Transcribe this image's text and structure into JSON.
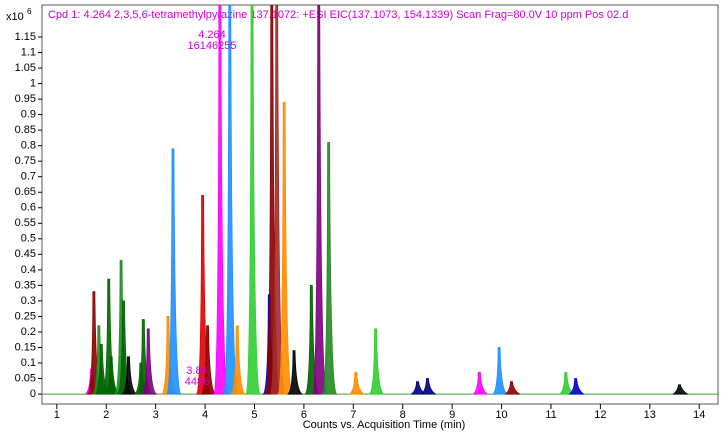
{
  "chart_data": {
    "type": "chromatogram",
    "title": "Cpd 1: 4.264 2,3,5,6-tetramethylpyrazine 137.1072: +ESI EIC(137.1073, 154.1339) Scan Frag=80.0V 10 ppm  Pos 02.d",
    "title_color": "#d000d0",
    "y_unit": "x10",
    "y_unit_exp": "6",
    "x_label": "Counts vs. Acquisition Time (min)",
    "annotations": [
      {
        "text": "4.264",
        "x": 4.264,
        "color": "#d000d0"
      },
      {
        "text": "16146255",
        "x": 4.264,
        "color": "#d000d0"
      },
      {
        "text": "3.84",
        "x": 3.84,
        "color": "#d000d0"
      },
      {
        "text": "4486",
        "x": 3.84,
        "color": "#d000d0"
      }
    ],
    "xlim": [
      0.7,
      14.38
    ],
    "xticks": [
      1,
      2,
      3,
      4,
      5,
      6,
      7,
      8,
      9,
      10,
      11,
      12,
      13,
      14
    ],
    "ylim": [
      -0.032,
      1.253
    ],
    "yticks": [
      0,
      0.05,
      0.1,
      0.15,
      0.2,
      0.25,
      0.3,
      0.35,
      0.4,
      0.45,
      0.5,
      0.55,
      0.6,
      0.65,
      0.7,
      0.75,
      0.8,
      0.85,
      0.9,
      0.95,
      1,
      1.05,
      1.1,
      1.15
    ],
    "peaks": [
      {
        "x": 1.7,
        "height": 0.08,
        "color": "#ff00ff"
      },
      {
        "x": 1.75,
        "height": 0.33,
        "color": "#8b0000"
      },
      {
        "x": 1.85,
        "height": 0.22,
        "color": "#228b22"
      },
      {
        "x": 1.9,
        "height": 0.16,
        "color": "#006400"
      },
      {
        "x": 2.05,
        "height": 0.37,
        "color": "#006400"
      },
      {
        "x": 2.1,
        "height": 0.12,
        "color": "#006400"
      },
      {
        "x": 2.3,
        "height": 0.43,
        "color": "#228b22"
      },
      {
        "x": 2.35,
        "height": 0.3,
        "color": "#006400"
      },
      {
        "x": 2.45,
        "height": 0.12,
        "color": "#000000"
      },
      {
        "x": 2.7,
        "height": 0.1,
        "color": "#006400"
      },
      {
        "x": 2.75,
        "height": 0.24,
        "color": "#006400"
      },
      {
        "x": 2.85,
        "height": 0.21,
        "color": "#800080"
      },
      {
        "x": 3.25,
        "height": 0.25,
        "color": "#ff8c00"
      },
      {
        "x": 3.35,
        "height": 0.79,
        "color": "#1e90ff"
      },
      {
        "x": 3.95,
        "height": 0.64,
        "color": "#e00000"
      },
      {
        "x": 4.05,
        "height": 0.22,
        "color": "#8b0000"
      },
      {
        "x": 4.3,
        "height": 1.3,
        "color": "#ff00ff"
      },
      {
        "x": 4.5,
        "height": 1.3,
        "color": "#1e90ff"
      },
      {
        "x": 4.65,
        "height": 0.22,
        "color": "#ff8c00"
      },
      {
        "x": 4.95,
        "height": 1.3,
        "color": "#32cd32"
      },
      {
        "x": 5.3,
        "height": 0.32,
        "color": "#0000cd"
      },
      {
        "x": 5.35,
        "height": 1.3,
        "color": "#8b0000"
      },
      {
        "x": 5.45,
        "height": 1.3,
        "color": "#a52a2a"
      },
      {
        "x": 5.6,
        "height": 0.94,
        "color": "#ff8c00"
      },
      {
        "x": 5.8,
        "height": 0.14,
        "color": "#000000"
      },
      {
        "x": 6.15,
        "height": 0.35,
        "color": "#006400"
      },
      {
        "x": 6.3,
        "height": 1.3,
        "color": "#800080"
      },
      {
        "x": 6.5,
        "height": 0.81,
        "color": "#228b22"
      },
      {
        "x": 7.05,
        "height": 0.07,
        "color": "#ff8c00"
      },
      {
        "x": 7.45,
        "height": 0.21,
        "color": "#32cd32"
      },
      {
        "x": 8.3,
        "height": 0.04,
        "color": "#000080"
      },
      {
        "x": 8.5,
        "height": 0.05,
        "color": "#000080"
      },
      {
        "x": 9.55,
        "height": 0.07,
        "color": "#ff00ff"
      },
      {
        "x": 9.95,
        "height": 0.15,
        "color": "#1e90ff"
      },
      {
        "x": 10.2,
        "height": 0.04,
        "color": "#8b0000"
      },
      {
        "x": 11.3,
        "height": 0.07,
        "color": "#32cd32"
      },
      {
        "x": 11.5,
        "height": 0.05,
        "color": "#0000cd"
      },
      {
        "x": 13.6,
        "height": 0.03,
        "color": "#000000"
      }
    ]
  }
}
